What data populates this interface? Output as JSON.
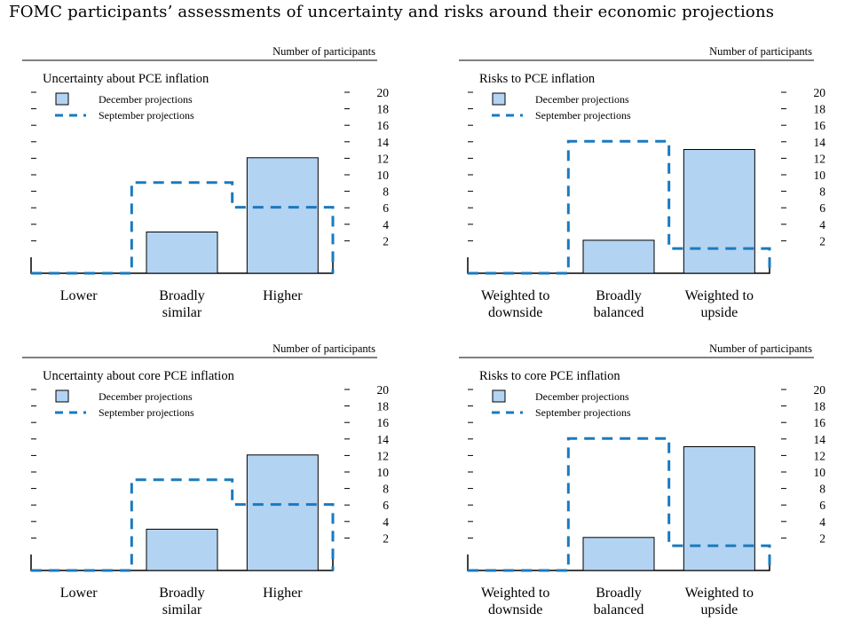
{
  "title": "FOMC participants’ assessments of uncertainty and risks around their economic projections",
  "colors": {
    "bar": "#b3d3f2",
    "dash": "#1a7abf",
    "axis": "#000000"
  },
  "legend": {
    "december": "December projections",
    "september": "September projections"
  },
  "ylabel": "Number of participants",
  "chart_data": [
    {
      "type": "bar",
      "title": "Uncertainty about PCE inflation",
      "ylabel": "Number of participants",
      "ylim": [
        0,
        20
      ],
      "yticks": [
        "2",
        "4",
        "6",
        "8",
        "10",
        "12",
        "14",
        "16",
        "18",
        "20"
      ],
      "categories": [
        [
          "Lower"
        ],
        [
          "Broadly",
          "similar"
        ],
        [
          "Higher"
        ]
      ],
      "series": [
        {
          "name": "December projections",
          "values": [
            0,
            5,
            14
          ]
        },
        {
          "name": "September projections",
          "values": [
            0,
            11,
            8
          ]
        }
      ]
    },
    {
      "type": "bar",
      "title": "Risks to PCE inflation",
      "ylabel": "Number of participants",
      "ylim": [
        0,
        20
      ],
      "yticks": [
        "2",
        "4",
        "6",
        "8",
        "10",
        "12",
        "14",
        "16",
        "18",
        "20"
      ],
      "categories": [
        [
          "Weighted to",
          "downside"
        ],
        [
          "Broadly",
          "balanced"
        ],
        [
          "Weighted to",
          "upside"
        ]
      ],
      "series": [
        {
          "name": "December projections",
          "values": [
            0,
            4,
            15
          ]
        },
        {
          "name": "September projections",
          "values": [
            0,
            16,
            3
          ]
        }
      ]
    },
    {
      "type": "bar",
      "title": "Uncertainty about core PCE inflation",
      "ylabel": "Number of participants",
      "ylim": [
        0,
        20
      ],
      "yticks": [
        "2",
        "4",
        "6",
        "8",
        "10",
        "12",
        "14",
        "16",
        "18",
        "20"
      ],
      "categories": [
        [
          "Lower"
        ],
        [
          "Broadly",
          "similar"
        ],
        [
          "Higher"
        ]
      ],
      "series": [
        {
          "name": "December projections",
          "values": [
            0,
            5,
            14
          ]
        },
        {
          "name": "September projections",
          "values": [
            0,
            11,
            8
          ]
        }
      ]
    },
    {
      "type": "bar",
      "title": "Risks to core PCE inflation",
      "ylabel": "Number of participants",
      "ylim": [
        0,
        20
      ],
      "yticks": [
        "2",
        "4",
        "6",
        "8",
        "10",
        "12",
        "14",
        "16",
        "18",
        "20"
      ],
      "categories": [
        [
          "Weighted to",
          "downside"
        ],
        [
          "Broadly",
          "balanced"
        ],
        [
          "Weighted to",
          "upside"
        ]
      ],
      "series": [
        {
          "name": "December projections",
          "values": [
            0,
            4,
            15
          ]
        },
        {
          "name": "September projections",
          "values": [
            0,
            16,
            3
          ]
        }
      ]
    }
  ]
}
